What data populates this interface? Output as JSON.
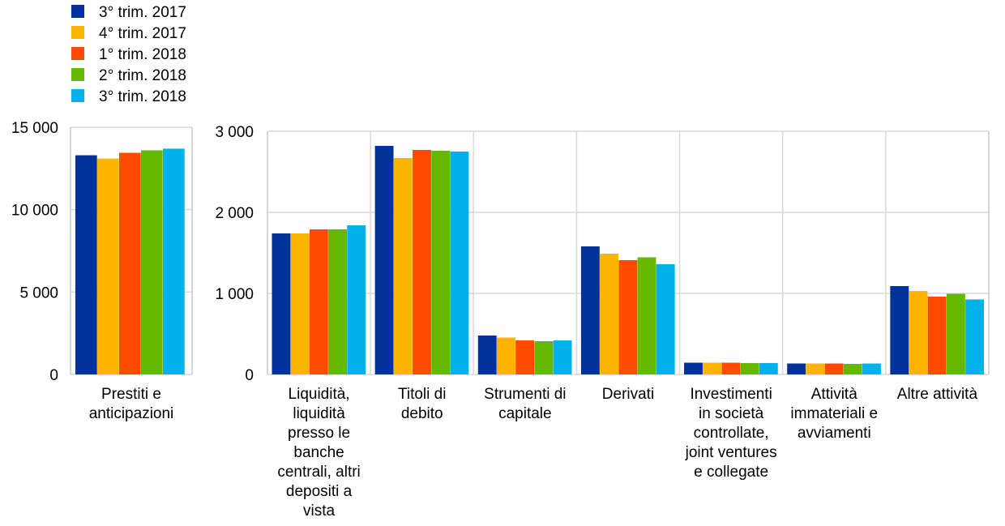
{
  "chart_data": [
    {
      "type": "bar",
      "categories": [
        "Prestiti e anticipazioni"
      ],
      "category_label_lines": [
        [
          "Prestiti e",
          "anticipazioni"
        ]
      ],
      "series": [
        {
          "name": "3° trim. 2017",
          "values": [
            13300
          ]
        },
        {
          "name": "4° trim. 2017",
          "values": [
            13100
          ]
        },
        {
          "name": "1° trim. 2018",
          "values": [
            13450
          ]
        },
        {
          "name": "2° trim. 2018",
          "values": [
            13600
          ]
        },
        {
          "name": "3° trim. 2018",
          "values": [
            13700
          ]
        }
      ],
      "ylim": [
        0,
        15000
      ],
      "yticks": [
        0,
        5000,
        10000,
        15000
      ],
      "ytick_labels": [
        "0",
        "5 000",
        "10 000",
        "15 000"
      ],
      "grid": true
    },
    {
      "type": "bar",
      "categories": [
        "Liquidità, liquidità presso le banche centrali, altri depositi a vista",
        "Titoli di debito",
        "Strumenti di capitale",
        "Derivati",
        "Investimenti in società controllate, joint ventures e collegate",
        "Attività immateriali e avviamenti",
        "Altre attività"
      ],
      "category_label_lines": [
        [
          "Liquidità,",
          "liquidità",
          "presso le",
          "banche",
          "centrali, altri",
          "depositi a",
          "vista"
        ],
        [
          "Titoli di",
          "debito"
        ],
        [
          "Strumenti di",
          "capitale"
        ],
        [
          "Derivati"
        ],
        [
          "Investimenti",
          "in società",
          "controllate,",
          "joint ventures",
          "e collegate"
        ],
        [
          "Attività",
          "immateriali e",
          "avviamenti"
        ],
        [
          "Altre attività"
        ]
      ],
      "series": [
        {
          "name": "3° trim. 2017",
          "values": [
            1740,
            2820,
            480,
            1580,
            145,
            135,
            1090
          ]
        },
        {
          "name": "4° trim. 2017",
          "values": [
            1740,
            2670,
            455,
            1490,
            145,
            135,
            1030
          ]
        },
        {
          "name": "1° trim. 2018",
          "values": [
            1790,
            2770,
            420,
            1410,
            145,
            135,
            960
          ]
        },
        {
          "name": "2° trim. 2018",
          "values": [
            1790,
            2760,
            410,
            1445,
            140,
            130,
            995
          ]
        },
        {
          "name": "3° trim. 2018",
          "values": [
            1840,
            2750,
            420,
            1360,
            140,
            135,
            925
          ]
        }
      ],
      "ylim": [
        0,
        3000
      ],
      "yticks": [
        0,
        1000,
        2000,
        3000
      ],
      "ytick_labels": [
        "0",
        "1 000",
        "2 000",
        "3 000"
      ],
      "grid": true
    }
  ],
  "legend": {
    "placement": "top-left",
    "items": [
      {
        "label": "3° trim. 2017",
        "color": "#003299"
      },
      {
        "label": "4° trim. 2017",
        "color": "#FFB400"
      },
      {
        "label": "1° trim. 2018",
        "color": "#FF4B00"
      },
      {
        "label": "2° trim. 2018",
        "color": "#65B800"
      },
      {
        "label": "3° trim. 2018",
        "color": "#00B1EA"
      }
    ]
  },
  "colors": {
    "series": [
      "#003299",
      "#FFB400",
      "#FF4B00",
      "#65B800",
      "#00B1EA"
    ],
    "grid": "#d9d9d9",
    "frame": "#c8c8c8"
  }
}
